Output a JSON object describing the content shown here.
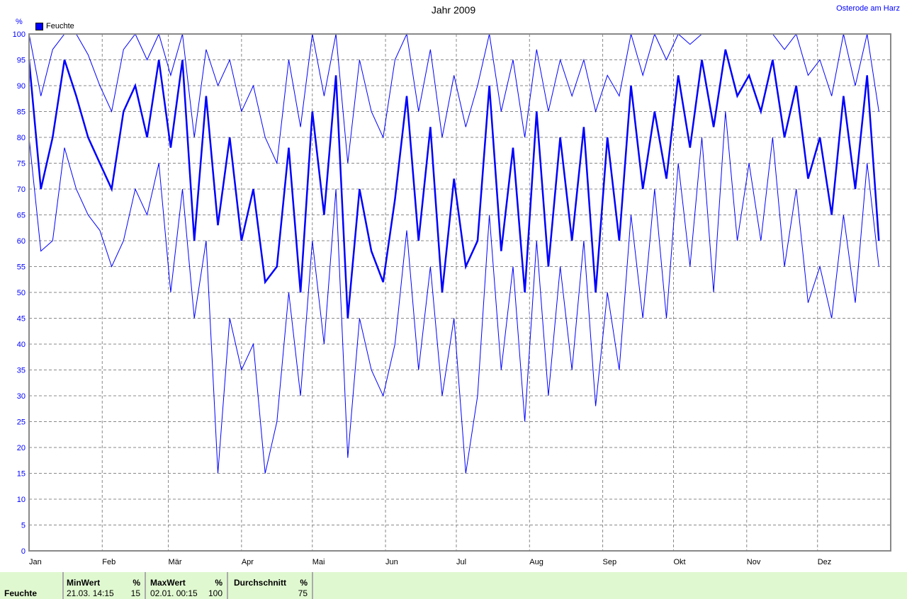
{
  "header": {
    "title": "Jahr 2009",
    "station": "Osterode am Harz"
  },
  "chart_data": {
    "type": "line",
    "title": "Jahr 2009",
    "ylabel": "%",
    "ylim": [
      0,
      100
    ],
    "yticks": [
      0,
      5,
      10,
      15,
      20,
      25,
      30,
      35,
      40,
      45,
      50,
      55,
      60,
      65,
      70,
      75,
      80,
      85,
      90,
      95,
      100
    ],
    "xlim": [
      "2009-01-01",
      "2009-12-31"
    ],
    "xticks": [
      {
        "label": "Jan",
        "date": "2009-01-01"
      },
      {
        "label": "Feb",
        "date": "2009-02-01"
      },
      {
        "label": "Mär",
        "date": "2009-03-01"
      },
      {
        "label": "Apr",
        "date": "2009-04-01"
      },
      {
        "label": "Mai",
        "date": "2009-05-01"
      },
      {
        "label": "Jun",
        "date": "2009-06-01"
      },
      {
        "label": "Jul",
        "date": "2009-07-01"
      },
      {
        "label": "Aug",
        "date": "2009-08-01"
      },
      {
        "label": "Sep",
        "date": "2009-09-01"
      },
      {
        "label": "Okt",
        "date": "2009-10-01"
      },
      {
        "label": "Nov",
        "date": "2009-11-01"
      },
      {
        "label": "Dez",
        "date": "2009-12-01"
      }
    ],
    "grid": true,
    "legend": {
      "label": "Feuchte",
      "placement": "top-left",
      "color": "#0000ff"
    },
    "x": [
      "2009-01-01",
      "2009-01-06",
      "2009-01-11",
      "2009-01-16",
      "2009-01-21",
      "2009-01-26",
      "2009-01-31",
      "2009-02-05",
      "2009-02-10",
      "2009-02-15",
      "2009-02-20",
      "2009-02-25",
      "2009-03-02",
      "2009-03-07",
      "2009-03-12",
      "2009-03-17",
      "2009-03-22",
      "2009-03-27",
      "2009-04-01",
      "2009-04-06",
      "2009-04-11",
      "2009-04-16",
      "2009-04-21",
      "2009-04-26",
      "2009-05-01",
      "2009-05-06",
      "2009-05-11",
      "2009-05-16",
      "2009-05-21",
      "2009-05-26",
      "2009-05-31",
      "2009-06-05",
      "2009-06-10",
      "2009-06-15",
      "2009-06-20",
      "2009-06-25",
      "2009-06-30",
      "2009-07-05",
      "2009-07-10",
      "2009-07-15",
      "2009-07-20",
      "2009-07-25",
      "2009-07-30",
      "2009-08-04",
      "2009-08-09",
      "2009-08-14",
      "2009-08-19",
      "2009-08-24",
      "2009-08-29",
      "2009-09-03",
      "2009-09-08",
      "2009-09-13",
      "2009-09-18",
      "2009-09-23",
      "2009-09-28",
      "2009-10-03",
      "2009-10-08",
      "2009-10-13",
      "2009-10-18",
      "2009-10-23",
      "2009-10-28",
      "2009-11-02",
      "2009-11-07",
      "2009-11-12",
      "2009-11-17",
      "2009-11-22",
      "2009-11-27",
      "2009-12-02",
      "2009-12-07",
      "2009-12-12",
      "2009-12-17",
      "2009-12-22",
      "2009-12-27"
    ],
    "series": [
      {
        "role": "mean",
        "color": "#0000ff",
        "values": [
          95,
          70,
          80,
          95,
          88,
          80,
          75,
          70,
          85,
          90,
          80,
          95,
          78,
          95,
          60,
          88,
          63,
          80,
          60,
          70,
          52,
          55,
          78,
          50,
          85,
          65,
          92,
          45,
          70,
          58,
          52,
          68,
          88,
          60,
          82,
          50,
          72,
          55,
          60,
          90,
          58,
          78,
          50,
          85,
          55,
          80,
          60,
          82,
          50,
          80,
          60,
          90,
          70,
          85,
          72,
          92,
          78,
          95,
          82,
          97,
          88,
          92,
          85,
          95,
          80,
          90,
          72,
          80,
          65,
          88,
          70,
          92,
          60
        ]
      },
      {
        "role": "max",
        "color": "#0000ff",
        "values": [
          100,
          88,
          97,
          100,
          100,
          96,
          90,
          85,
          97,
          100,
          95,
          100,
          92,
          100,
          80,
          97,
          90,
          95,
          85,
          90,
          80,
          75,
          95,
          82,
          100,
          88,
          100,
          75,
          95,
          85,
          80,
          95,
          100,
          85,
          97,
          80,
          92,
          82,
          90,
          100,
          85,
          95,
          80,
          97,
          85,
          95,
          88,
          95,
          85,
          92,
          88,
          100,
          92,
          100,
          95,
          100,
          98,
          100,
          100,
          100,
          100,
          100,
          100,
          100,
          97,
          100,
          92,
          95,
          88,
          100,
          90,
          100,
          85
        ]
      },
      {
        "role": "min",
        "color": "#0000ff",
        "values": [
          80,
          58,
          60,
          78,
          70,
          65,
          62,
          55,
          60,
          70,
          65,
          75,
          50,
          70,
          45,
          60,
          15,
          45,
          35,
          40,
          15,
          25,
          50,
          30,
          60,
          40,
          70,
          18,
          45,
          35,
          30,
          40,
          62,
          35,
          55,
          30,
          45,
          15,
          30,
          65,
          35,
          55,
          25,
          60,
          30,
          55,
          35,
          60,
          28,
          50,
          35,
          65,
          45,
          70,
          45,
          75,
          55,
          80,
          50,
          85,
          60,
          75,
          60,
          80,
          55,
          70,
          48,
          55,
          45,
          65,
          48,
          75,
          55
        ]
      }
    ]
  },
  "summary": {
    "name": "Feuchte",
    "min": {
      "label": "MinWert",
      "unit": "%",
      "date": "21.03.  14:15",
      "value": "15"
    },
    "max": {
      "label": "MaxWert",
      "unit": "%",
      "date": "02.01.  00:15",
      "value": "100"
    },
    "avg": {
      "label": "Durchschnitt",
      "unit": "%",
      "value": "75"
    }
  }
}
